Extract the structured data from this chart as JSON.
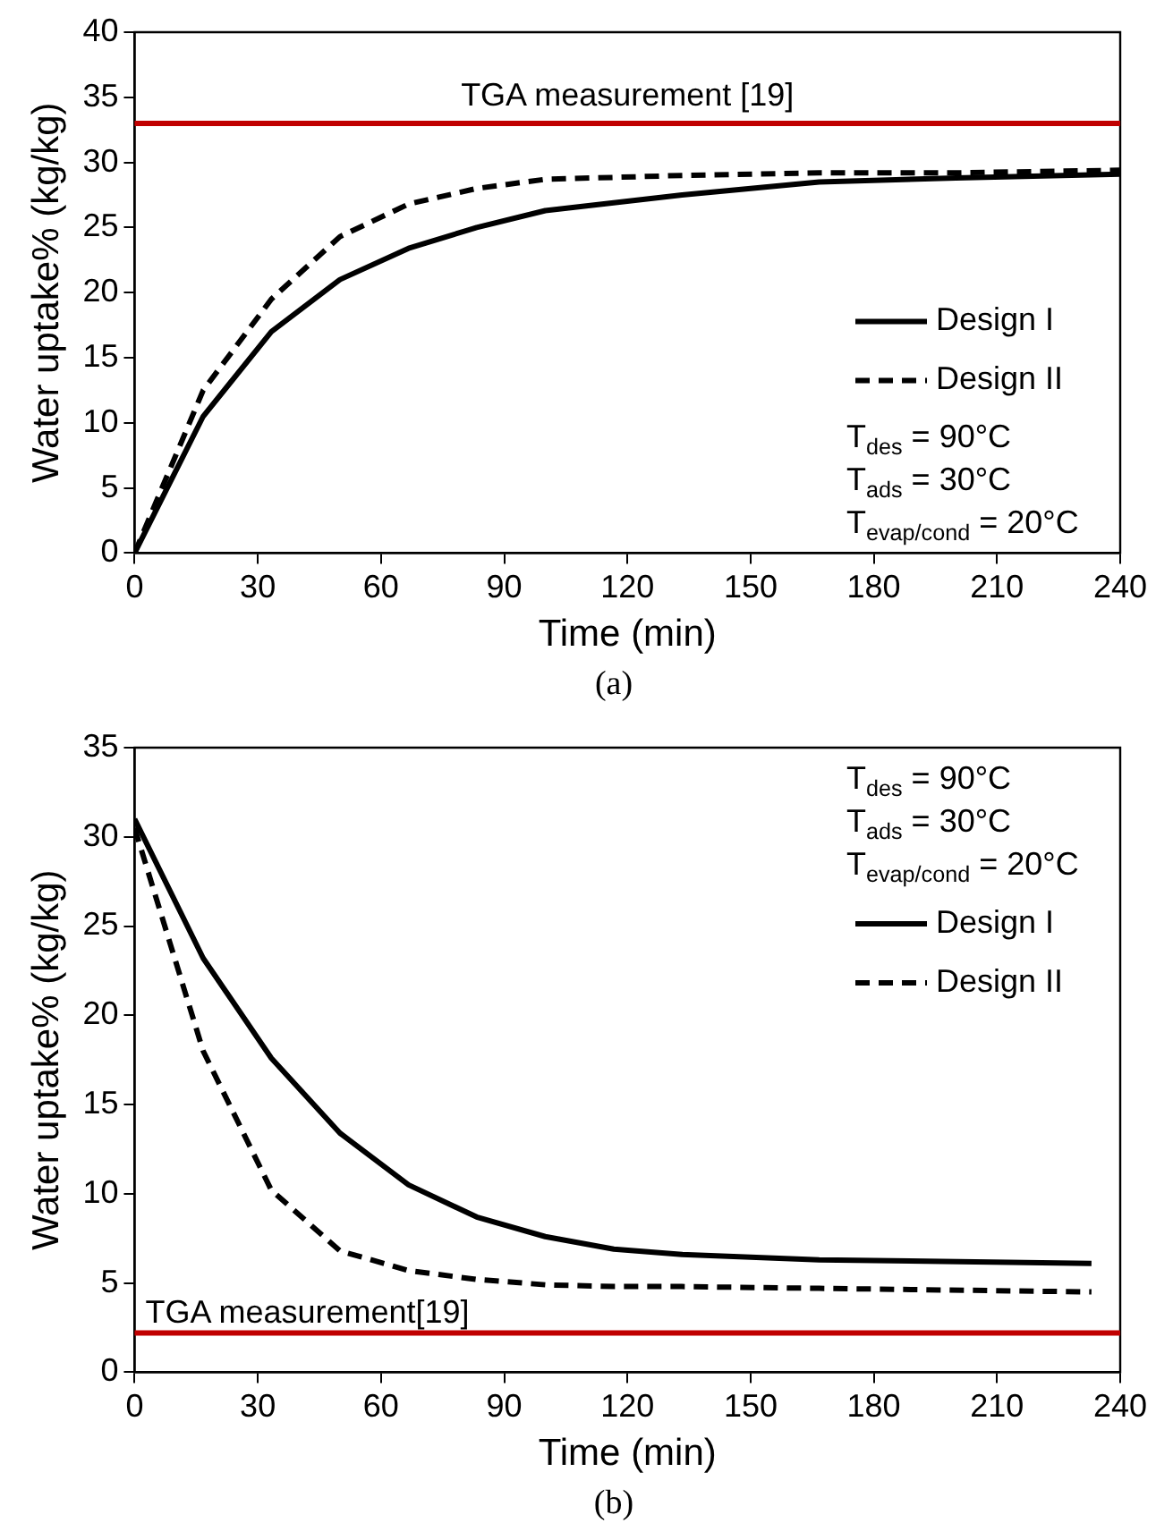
{
  "chart_data": [
    {
      "type": "line",
      "title": "(a)",
      "xlabel": "Time (min)",
      "ylabel": "Water uptake% (kg/kg)",
      "xlim": [
        0,
        240
      ],
      "xticks": [
        0,
        30,
        60,
        90,
        120,
        150,
        180,
        210,
        240
      ],
      "ylim": [
        0,
        40
      ],
      "yticks": [
        0,
        5,
        10,
        15,
        20,
        25,
        30,
        35,
        40
      ],
      "grid": false,
      "legend": "right",
      "marker": "none",
      "series": [
        {
          "name": "Design I",
          "color": "#000000",
          "line_style": "solid",
          "x": [
            0,
            16.7,
            33.3,
            50,
            66.7,
            83.3,
            100,
            133.3,
            166.7,
            200,
            240
          ],
          "values": [
            0,
            10.5,
            17,
            21,
            23.4,
            25,
            26.3,
            27.5,
            28.5,
            28.8,
            29.1
          ]
        },
        {
          "name": "Design II",
          "color": "#000000",
          "line_style": "dashed",
          "x": [
            0,
            16.7,
            33.3,
            50,
            66.7,
            83.3,
            100,
            133.3,
            166.7,
            200,
            240
          ],
          "values": [
            0,
            12.5,
            19.5,
            24.3,
            26.8,
            28,
            28.7,
            29,
            29.2,
            29.2,
            29.4
          ]
        }
      ],
      "ref_lines": [
        {
          "axis": "y",
          "value": 33,
          "label": "TGA measurement [19]",
          "color": "#c00000"
        }
      ],
      "annotations": [
        "T$_{des}$ = 90°C",
        "T$_{ads}$ = 30°C",
        "T$_{evap/cond}$ = 20°C"
      ]
    },
    {
      "type": "line",
      "title": "(b)",
      "xlabel": "Time (min)",
      "ylabel": "Water uptake% (kg/kg)",
      "xlim": [
        0,
        240
      ],
      "xticks": [
        0,
        30,
        60,
        90,
        120,
        150,
        180,
        210,
        240
      ],
      "ylim": [
        0,
        35
      ],
      "yticks": [
        0,
        5,
        10,
        15,
        20,
        25,
        30,
        35
      ],
      "grid": false,
      "legend": "top right",
      "marker": "none",
      "series": [
        {
          "name": "Design I",
          "color": "#000000",
          "line_style": "solid",
          "x": [
            0,
            16.7,
            33.3,
            50,
            66.7,
            83.3,
            100,
            116.7,
            133.3,
            166.7,
            233
          ],
          "values": [
            31,
            23.2,
            17.6,
            13.4,
            10.5,
            8.7,
            7.6,
            6.9,
            6.6,
            6.3,
            6.1
          ]
        },
        {
          "name": "Design II",
          "color": "#000000",
          "line_style": "dashed",
          "x": [
            0,
            16.7,
            33.3,
            50,
            66.7,
            83.3,
            100,
            116.7,
            133.3,
            166.7,
            233
          ],
          "values": [
            30.5,
            18,
            10.2,
            6.8,
            5.7,
            5.2,
            4.9,
            4.8,
            4.8,
            4.7,
            4.5
          ]
        }
      ],
      "ref_lines": [
        {
          "axis": "y",
          "value": 2.2,
          "label": "TGA measurement[19]",
          "color": "#c00000"
        }
      ],
      "annotations": [
        "T$_{des}$ = 90°C",
        "T$_{ads}$ = 30°C",
        "T$_{evap/cond}$ = 20°C"
      ]
    }
  ]
}
